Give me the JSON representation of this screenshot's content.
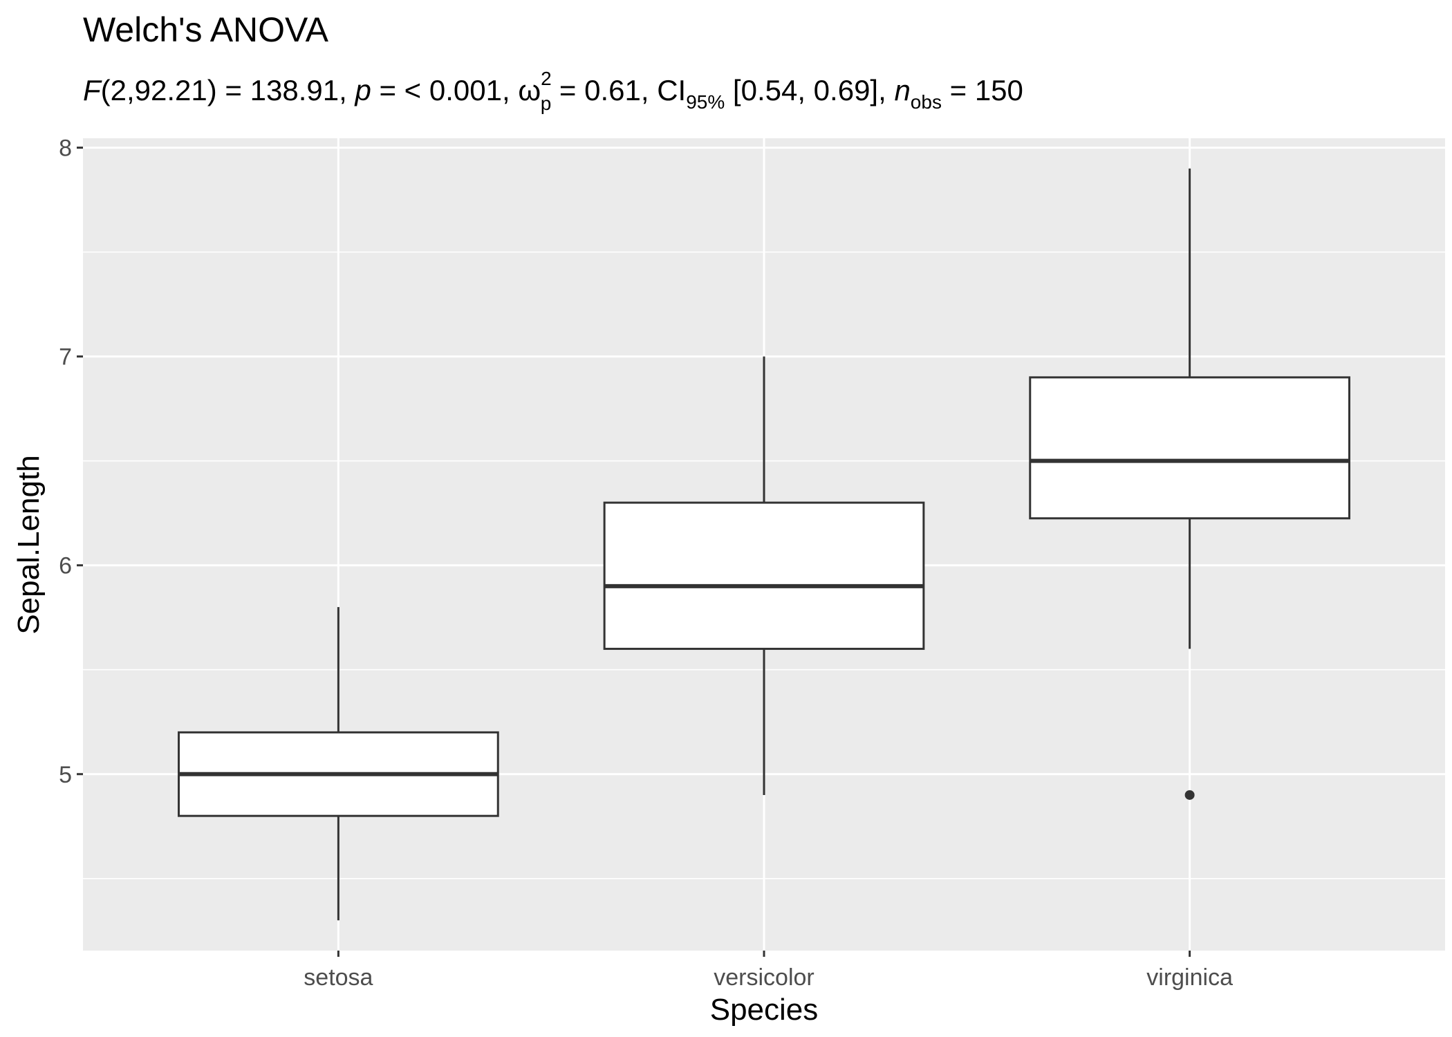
{
  "colors": {
    "panel_background": "#ebebeb",
    "grid_line": "#ffffff",
    "box_fill": "#ffffff",
    "box_outline": "#333333",
    "outlier": "#333333",
    "tick_label": "#4d4d4d",
    "text": "#000000"
  },
  "chart_data": {
    "type": "boxplot",
    "title": "Welch's ANOVA",
    "subtitle": {
      "f_symbol": "F",
      "f_args": "(2,92.21) = 138.91, ",
      "p_symbol": "p",
      "p_text": " = < 0.001, ",
      "omega": "ω",
      "omega_sup": "2",
      "omega_sub": "p",
      "omega_text": " = 0.61, CI",
      "ci_sub": "95%",
      "ci_text": " [0.54, 0.69], ",
      "n_symbol": "n",
      "n_sub": "obs",
      "n_text": " = 150"
    },
    "xlabel": "Species",
    "ylabel": "Sepal.Length",
    "categories": [
      "setosa",
      "versicolor",
      "virginica"
    ],
    "y_ticks": [
      5,
      6,
      7,
      8
    ],
    "y_tick_labels": [
      "5",
      "6",
      "7",
      "8"
    ],
    "ylim": [
      4.155,
      8.045
    ],
    "grid": true,
    "boxes": [
      {
        "category": "setosa",
        "whisker_low": 4.3,
        "q1": 4.8,
        "median": 5.0,
        "q3": 5.2,
        "whisker_high": 5.8,
        "outliers": []
      },
      {
        "category": "versicolor",
        "whisker_low": 4.9,
        "q1": 5.6,
        "median": 5.9,
        "q3": 6.3,
        "whisker_high": 7.0,
        "outliers": []
      },
      {
        "category": "virginica",
        "whisker_low": 5.6,
        "q1": 6.225,
        "median": 6.5,
        "q3": 6.9,
        "whisker_high": 7.9,
        "outliers": [
          4.9
        ]
      }
    ]
  }
}
